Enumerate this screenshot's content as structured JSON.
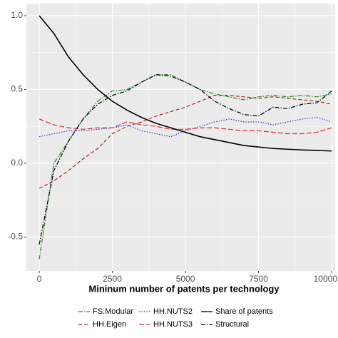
{
  "chart_data": {
    "type": "line",
    "x_label": "Mininum number of patents per technology",
    "x": [
      0,
      500,
      1000,
      1500,
      2000,
      2500,
      3000,
      3500,
      4000,
      4500,
      5000,
      5500,
      6000,
      6500,
      7000,
      7500,
      8000,
      8500,
      9000,
      9500,
      10000
    ],
    "series": [
      {
        "name": "FS.Modular",
        "color": "#228b22",
        "dash": "dashdot",
        "values": [
          -0.65,
          0.0,
          0.15,
          0.3,
          0.42,
          0.49,
          0.5,
          0.55,
          0.6,
          0.6,
          0.55,
          0.5,
          0.47,
          0.45,
          0.43,
          0.45,
          0.46,
          0.45,
          0.46,
          0.45,
          0.47
        ]
      },
      {
        "name": "HH.Eigen",
        "color": "#b22222",
        "dash": "dashed",
        "values": [
          -0.17,
          -0.12,
          -0.05,
          0.03,
          0.1,
          0.2,
          0.25,
          0.28,
          0.32,
          0.35,
          0.38,
          0.42,
          0.46,
          0.46,
          0.45,
          0.44,
          0.45,
          0.44,
          0.43,
          0.42,
          0.4
        ]
      },
      {
        "name": "HH.NUTS2",
        "color": "#3a3acf",
        "dash": "dotted",
        "values": [
          0.18,
          0.2,
          0.22,
          0.22,
          0.23,
          0.24,
          0.26,
          0.22,
          0.2,
          0.18,
          0.22,
          0.25,
          0.28,
          0.3,
          0.28,
          0.28,
          0.26,
          0.28,
          0.3,
          0.31,
          0.28
        ]
      },
      {
        "name": "HH.NUTS3",
        "color": "#e8292b",
        "dash": "longdash",
        "values": [
          0.3,
          0.26,
          0.24,
          0.23,
          0.24,
          0.24,
          0.28,
          0.26,
          0.25,
          0.23,
          0.23,
          0.24,
          0.24,
          0.23,
          0.22,
          0.22,
          0.21,
          0.2,
          0.2,
          0.21,
          0.24
        ]
      },
      {
        "name": "Share of patents",
        "color": "#000000",
        "dash": "solid",
        "values": [
          1.0,
          0.88,
          0.72,
          0.6,
          0.5,
          0.42,
          0.36,
          0.31,
          0.27,
          0.24,
          0.21,
          0.18,
          0.16,
          0.14,
          0.12,
          0.11,
          0.1,
          0.095,
          0.09,
          0.087,
          0.083
        ]
      },
      {
        "name": "Structural",
        "color": "#000000",
        "dash": "dashdot",
        "values": [
          -0.55,
          -0.05,
          0.15,
          0.3,
          0.4,
          0.46,
          0.49,
          0.55,
          0.6,
          0.59,
          0.55,
          0.5,
          0.42,
          0.37,
          0.33,
          0.32,
          0.38,
          0.37,
          0.4,
          0.41,
          0.49
        ]
      }
    ],
    "xlim": [
      -440,
      10120
    ],
    "xticks": [
      0,
      2500,
      5000,
      7500,
      10000
    ],
    "ylim": [
      -0.73,
      1.082
    ],
    "yticks": [
      {
        "value": -0.5,
        "label": "-0.5"
      },
      {
        "value": 0,
        "label": "0.0"
      },
      {
        "value": 0.5,
        "label": "0.5"
      },
      {
        "value": 1,
        "label": "1.0"
      }
    ],
    "grid": true,
    "legend": "bottom"
  }
}
